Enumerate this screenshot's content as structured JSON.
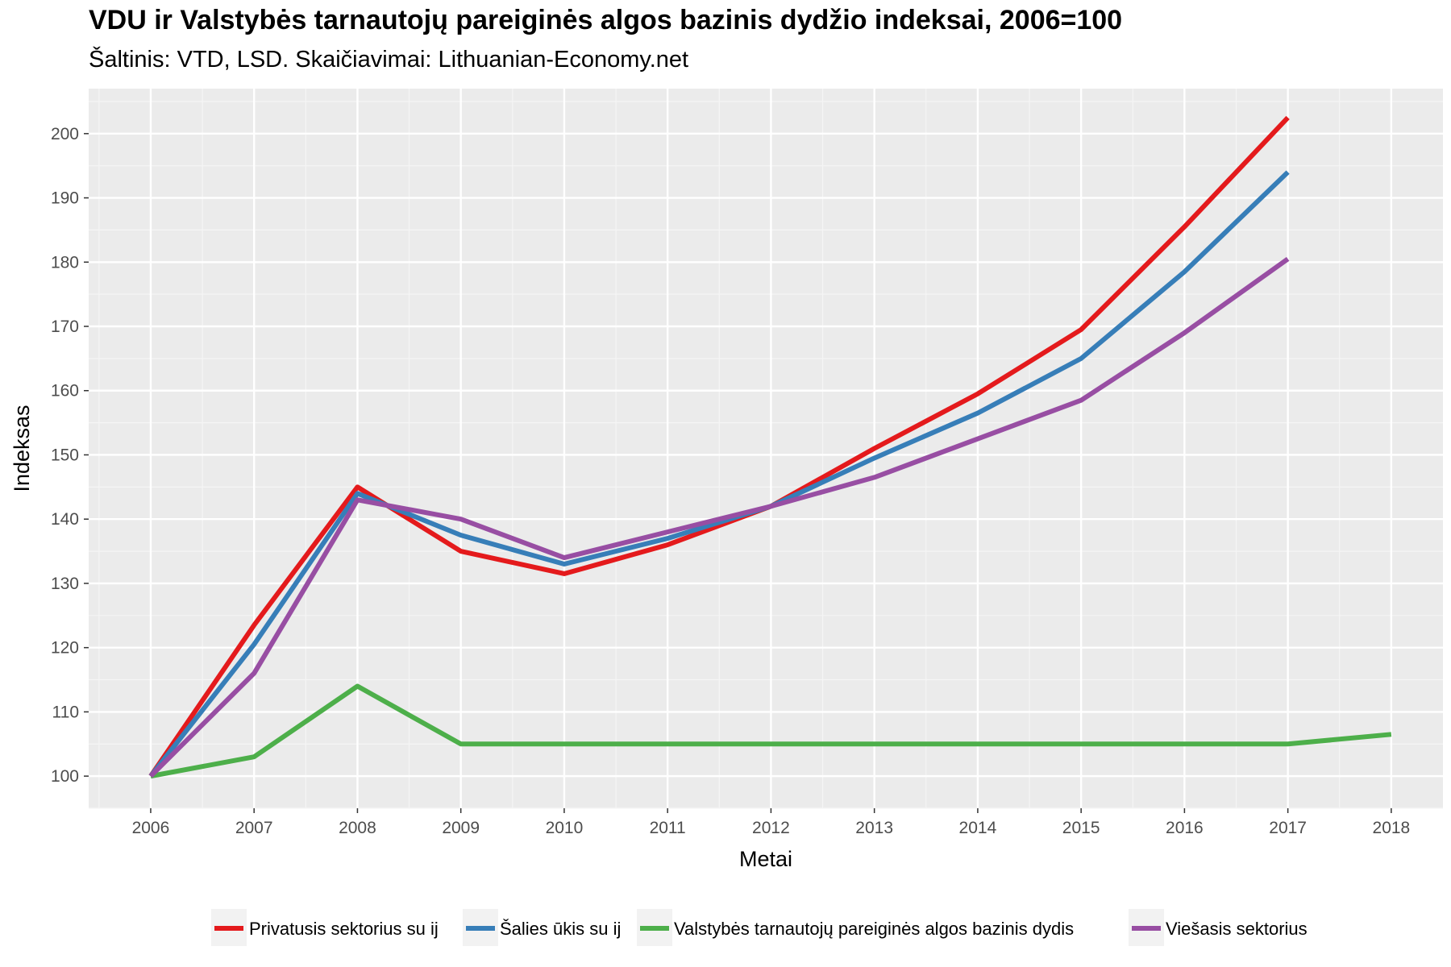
{
  "chart_data": {
    "type": "line",
    "title": "VDU ir Valstybės tarnautojų pareiginės algos bazinis dydžio indeksai, 2006=100",
    "subtitle": "Šaltinis: VTD, LSD. Skaičiavimai: Lithuanian-Economy.net",
    "xlabel": "Metai",
    "ylabel": "Indeksas",
    "x": [
      2006,
      2007,
      2008,
      2009,
      2010,
      2011,
      2012,
      2013,
      2014,
      2015,
      2016,
      2017,
      2018
    ],
    "xlim": [
      2005.4,
      2018.5
    ],
    "ylim": [
      95,
      207
    ],
    "yticks": [
      100,
      110,
      120,
      130,
      140,
      150,
      160,
      170,
      180,
      190,
      200
    ],
    "grid": true,
    "background": "#ebebeb",
    "legend_position": "bottom",
    "series": [
      {
        "name": "Privatusis sektorius su ij",
        "color": "#e41a1c",
        "x": [
          2006,
          2007,
          2008,
          2009,
          2010,
          2011,
          2012,
          2013,
          2014,
          2015,
          2016,
          2017
        ],
        "values": [
          100,
          123.5,
          145,
          135,
          131.5,
          136,
          142,
          151,
          159.5,
          169.5,
          185.5,
          202.5
        ]
      },
      {
        "name": "Šalies ūkis su ij",
        "color": "#377eb8",
        "x": [
          2006,
          2007,
          2008,
          2009,
          2010,
          2011,
          2012,
          2013,
          2014,
          2015,
          2016,
          2017
        ],
        "values": [
          100,
          120.5,
          144,
          137.5,
          133,
          137,
          142,
          149.5,
          156.5,
          165,
          178.5,
          194
        ]
      },
      {
        "name": "Valstybės tarnautojų pareiginės algos bazinis dydis",
        "color": "#4daf4a",
        "x": [
          2006,
          2007,
          2008,
          2009,
          2010,
          2011,
          2012,
          2013,
          2014,
          2015,
          2016,
          2017,
          2018
        ],
        "values": [
          100,
          103,
          114,
          105,
          105,
          105,
          105,
          105,
          105,
          105,
          105,
          105,
          106.5
        ]
      },
      {
        "name": "Viešasis sektorius",
        "color": "#984ea3",
        "x": [
          2006,
          2007,
          2008,
          2009,
          2010,
          2011,
          2012,
          2013,
          2014,
          2015,
          2016,
          2017
        ],
        "values": [
          100,
          116,
          143,
          140,
          134,
          138,
          142,
          146.5,
          152.5,
          158.5,
          169,
          180.5
        ]
      }
    ]
  }
}
